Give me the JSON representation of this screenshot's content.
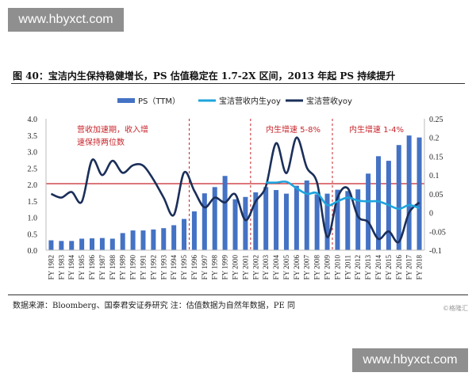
{
  "watermark_top": "www.hbyxct.com",
  "watermark_bottom": "www.hbyxct.com",
  "figure_title": "图 40：宝洁内生保持稳健增长，PS 估值稳定在 1.7-2X 区间，2013 年起 PS 持续提升",
  "source_note": "数据来源：Bloomberg、国泰君安证券研究  注：估值数据为自然年数据，PE 同",
  "credit": "©格隆汇",
  "chart_data": {
    "type": "bar+line",
    "title": "",
    "categories": [
      "FY 1982",
      "FY 1983",
      "FY 1984",
      "FY 1985",
      "FY 1986",
      "FY 1987",
      "FY 1988",
      "FY 1989",
      "FY 1990",
      "FY 1991",
      "FY 1992",
      "FY 1993",
      "FY 1994",
      "FY 1995",
      "FY 1996",
      "FY 1997",
      "FY 1998",
      "FY 1999",
      "FY 2000",
      "FY 2001",
      "FY 2002",
      "FY 2003",
      "FY 2004",
      "FY 2005",
      "FY 2006",
      "FY 2007",
      "FY 2008",
      "FY 2009",
      "FY 2010",
      "FY 2011",
      "FY 2012",
      "FY 2013",
      "FY 2014",
      "FY 2015",
      "FY 2016",
      "FY 2017",
      "FY 2018"
    ],
    "left_axis": {
      "ylim": [
        0,
        4.0
      ],
      "ticks": [
        "0.0",
        "0.5",
        "1.0",
        "1.5",
        "2.0",
        "2.5",
        "3.0",
        "3.5",
        "4.0"
      ]
    },
    "right_axis": {
      "ylim": [
        -0.1,
        0.25
      ],
      "ticks": [
        "-0.1",
        "-0.05",
        "0",
        "0.05",
        "0.1",
        "0.15",
        "0.2",
        "0.25"
      ]
    },
    "legend_position": "top",
    "series": [
      {
        "name": "PS（TTM）",
        "type": "bar",
        "axis": "left",
        "color": "#4472c4",
        "values": [
          0.3,
          0.28,
          0.28,
          0.35,
          0.36,
          0.37,
          0.35,
          0.52,
          0.6,
          0.6,
          0.63,
          0.67,
          0.76,
          0.95,
          1.18,
          1.73,
          1.92,
          2.26,
          1.55,
          1.62,
          1.76,
          1.92,
          1.83,
          1.72,
          1.96,
          2.12,
          1.7,
          1.72,
          1.84,
          1.8,
          1.85,
          2.33,
          2.86,
          2.72,
          3.2,
          3.49,
          3.43
        ]
      },
      {
        "name": "宝洁营收内生yoy",
        "type": "line",
        "axis": "right",
        "color": "#1ea4dc",
        "values": [
          null,
          null,
          null,
          null,
          null,
          null,
          null,
          null,
          null,
          null,
          null,
          null,
          null,
          null,
          null,
          null,
          null,
          null,
          null,
          null,
          null,
          0.08,
          0.08,
          0.082,
          0.065,
          0.05,
          0.052,
          0.02,
          0.03,
          0.04,
          0.032,
          0.03,
          0.03,
          0.02,
          0.01,
          0.02,
          0.012
        ]
      },
      {
        "name": "宝洁营收yoy",
        "type": "line",
        "axis": "right",
        "color": "#1b2f5a",
        "values": [
          0.05,
          0.04,
          0.055,
          0.029,
          0.14,
          0.1,
          0.138,
          0.106,
          0.126,
          0.125,
          0.088,
          0.04,
          -0.006,
          0.107,
          0.058,
          0.014,
          0.04,
          0.027,
          0.049,
          -0.02,
          0.03,
          0.07,
          0.185,
          0.105,
          0.2,
          0.12,
          0.08,
          -0.065,
          0.04,
          0.065,
          -0.01,
          -0.025,
          -0.07,
          -0.05,
          -0.078,
          0.0,
          0.027
        ]
      }
    ],
    "reference_line": {
      "axis": "left",
      "value": 2.0,
      "color": "#c8262c"
    },
    "period_dividers": [
      1995.5,
      2001.5,
      2009.5
    ],
    "annotations": [
      {
        "lines": [
          "营收加速期，收入增",
          "速保持两位数"
        ]
      },
      {
        "lines": [
          "内生增速 5-8%"
        ]
      },
      {
        "lines": [
          "内生增速 1-4%"
        ]
      }
    ]
  }
}
